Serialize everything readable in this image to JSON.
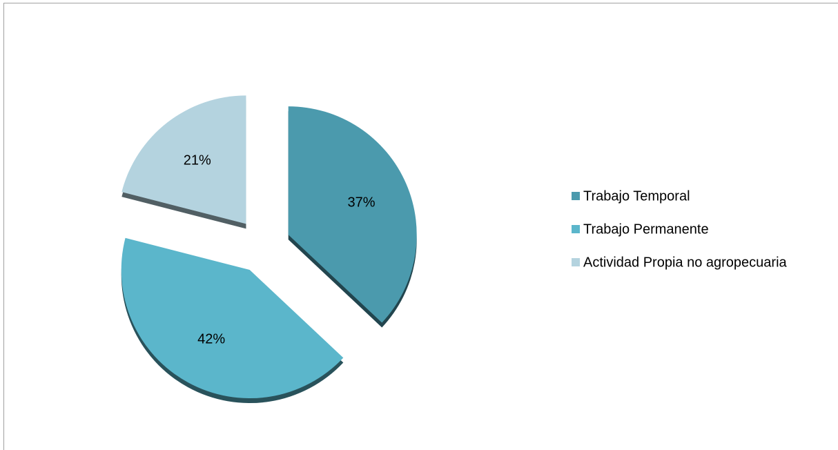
{
  "chart_data": {
    "type": "pie",
    "categories": [
      "Trabajo Temporal",
      "Trabajo Permanente",
      "Actividad Propia no agropecuaria"
    ],
    "values": [
      37,
      42,
      21
    ],
    "value_labels": [
      "37%",
      "42%",
      "21%"
    ],
    "colors": [
      "#4b9aad",
      "#5bb6cb",
      "#b4d3df"
    ],
    "legend": "right"
  }
}
